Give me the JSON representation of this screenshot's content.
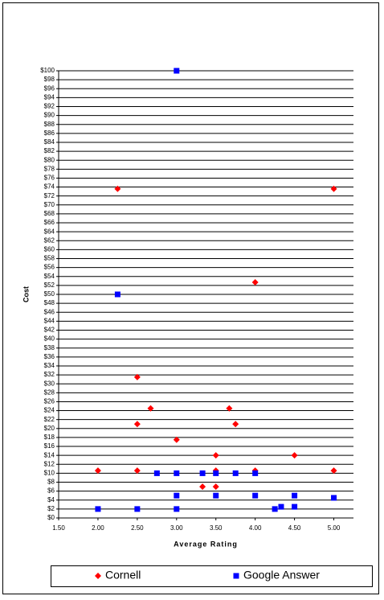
{
  "chart_data": {
    "type": "scatter",
    "xlabel": "Average Rating",
    "ylabel": "Cost",
    "xlim": [
      1.5,
      5.25
    ],
    "ylim": [
      0,
      100
    ],
    "xticks": [
      {
        "value": 1.5,
        "label": "1.50"
      },
      {
        "value": 2,
        "label": "2.00"
      },
      {
        "value": 2.5,
        "label": "2.50"
      },
      {
        "value": 3,
        "label": "3.00"
      },
      {
        "value": 3.5,
        "label": "3.50"
      },
      {
        "value": 4,
        "label": "4.00"
      },
      {
        "value": 4.5,
        "label": "4.50"
      },
      {
        "value": 5,
        "label": "5.00"
      }
    ],
    "yticks": [
      {
        "value": 0,
        "label": "$0"
      },
      {
        "value": 2,
        "label": "$2"
      },
      {
        "value": 4,
        "label": "$4"
      },
      {
        "value": 6,
        "label": "$6"
      },
      {
        "value": 8,
        "label": "$8"
      },
      {
        "value": 10,
        "label": "$10"
      },
      {
        "value": 12,
        "label": "$12"
      },
      {
        "value": 14,
        "label": "$14"
      },
      {
        "value": 16,
        "label": "$16"
      },
      {
        "value": 18,
        "label": "$18"
      },
      {
        "value": 20,
        "label": "$20"
      },
      {
        "value": 22,
        "label": "$22"
      },
      {
        "value": 24,
        "label": "$24"
      },
      {
        "value": 26,
        "label": "$26"
      },
      {
        "value": 28,
        "label": "$28"
      },
      {
        "value": 30,
        "label": "$30"
      },
      {
        "value": 32,
        "label": "$32"
      },
      {
        "value": 34,
        "label": "$34"
      },
      {
        "value": 36,
        "label": "$36"
      },
      {
        "value": 38,
        "label": "$38"
      },
      {
        "value": 40,
        "label": "$40"
      },
      {
        "value": 42,
        "label": "$42"
      },
      {
        "value": 44,
        "label": "$44"
      },
      {
        "value": 46,
        "label": "$46"
      },
      {
        "value": 48,
        "label": "$48"
      },
      {
        "value": 50,
        "label": "$50"
      },
      {
        "value": 52,
        "label": "$52"
      },
      {
        "value": 54,
        "label": "$54"
      },
      {
        "value": 56,
        "label": "$56"
      },
      {
        "value": 58,
        "label": "$58"
      },
      {
        "value": 60,
        "label": "$60"
      },
      {
        "value": 62,
        "label": "$62"
      },
      {
        "value": 64,
        "label": "$64"
      },
      {
        "value": 66,
        "label": "$66"
      },
      {
        "value": 68,
        "label": "$68"
      },
      {
        "value": 70,
        "label": "$70"
      },
      {
        "value": 72,
        "label": "$72"
      },
      {
        "value": 74,
        "label": "$74"
      },
      {
        "value": 76,
        "label": "$76"
      },
      {
        "value": 78,
        "label": "$78"
      },
      {
        "value": 80,
        "label": "$80"
      },
      {
        "value": 82,
        "label": "$82"
      },
      {
        "value": 84,
        "label": "$84"
      },
      {
        "value": 86,
        "label": "$86"
      },
      {
        "value": 88,
        "label": "$88"
      },
      {
        "value": 90,
        "label": "$90"
      },
      {
        "value": 92,
        "label": "$92"
      },
      {
        "value": 94,
        "label": "$94"
      },
      {
        "value": 96,
        "label": "$96"
      },
      {
        "value": 98,
        "label": "$98"
      },
      {
        "value": 100,
        "label": "$100"
      }
    ],
    "grid": true,
    "legend": "bottom",
    "series": [
      {
        "name": "Cornell",
        "color": "#ff0000",
        "marker": "diamond",
        "x": [
          2.0,
          2.25,
          2.5,
          2.5,
          2.5,
          2.67,
          3.0,
          3.33,
          3.5,
          3.5,
          3.5,
          3.67,
          3.75,
          4.0,
          4.0,
          4.5,
          5.0,
          5.0
        ],
        "values": [
          10.6,
          73.6,
          31.5,
          21,
          10.6,
          24.5,
          17.5,
          7,
          14,
          10.6,
          7,
          24.5,
          21,
          52.7,
          10.6,
          14,
          73.6,
          10.6
        ]
      },
      {
        "name": "Google Answer",
        "color": "#0000ff",
        "marker": "square",
        "x": [
          2.0,
          2.25,
          2.5,
          2.75,
          3.0,
          3.0,
          3.0,
          3.0,
          3.33,
          3.5,
          3.5,
          3.75,
          4.0,
          4.0,
          4.25,
          4.33,
          4.5,
          4.5,
          5.0
        ],
        "values": [
          2,
          50,
          2,
          10,
          100,
          10,
          5,
          2,
          10,
          10,
          5,
          10,
          10,
          5,
          2,
          2.5,
          2.5,
          5,
          4.5
        ]
      }
    ]
  }
}
